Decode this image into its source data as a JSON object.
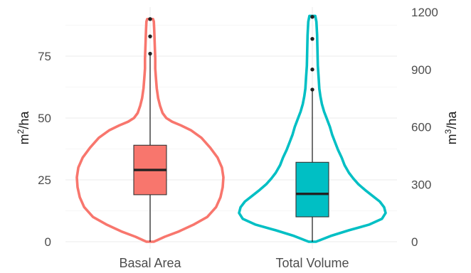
{
  "chart_data": {
    "type": "violin",
    "categories": [
      "Basal Area",
      "Total Volume"
    ],
    "y_left": {
      "label": "m²/ha",
      "ticks": [
        0,
        25,
        50,
        75
      ],
      "range": [
        0,
        93
      ]
    },
    "y_right": {
      "label": "m³/ha",
      "ticks": [
        0,
        300,
        600,
        900,
        1200
      ],
      "range": [
        0,
        1200
      ]
    },
    "grid": true,
    "series": [
      {
        "category": "Basal Area",
        "axis": "left",
        "color": "#F8766D",
        "box": {
          "q1": 19,
          "median": 29,
          "q3": 39,
          "whisker_low": 0,
          "whisker_high": 76
        },
        "outliers": [
          76,
          83,
          90
        ],
        "density": [
          [
            0,
            0.05
          ],
          [
            2,
            0.2
          ],
          [
            4,
            0.38
          ],
          [
            7,
            0.6
          ],
          [
            10,
            0.78
          ],
          [
            14,
            0.9
          ],
          [
            18,
            0.96
          ],
          [
            22,
            0.99
          ],
          [
            26,
            1.0
          ],
          [
            30,
            0.98
          ],
          [
            34,
            0.92
          ],
          [
            38,
            0.82
          ],
          [
            42,
            0.7
          ],
          [
            45,
            0.56
          ],
          [
            47,
            0.42
          ],
          [
            48.5,
            0.3
          ],
          [
            50,
            0.22
          ],
          [
            52,
            0.17
          ],
          [
            55,
            0.135
          ],
          [
            58,
            0.11
          ],
          [
            62,
            0.09
          ],
          [
            66,
            0.08
          ],
          [
            70,
            0.07
          ],
          [
            74,
            0.07
          ],
          [
            78,
            0.065
          ],
          [
            82,
            0.06
          ],
          [
            86,
            0.055
          ],
          [
            89,
            0.05
          ],
          [
            90,
            0.04
          ]
        ]
      },
      {
        "category": "Total Volume",
        "axis": "right",
        "color": "#00BFC4",
        "box": {
          "q1": 130,
          "median": 250,
          "q3": 415,
          "whisker_low": 0,
          "whisker_high": 795
        },
        "outliers": [
          795,
          900,
          1060,
          1175
        ],
        "density": [
          [
            0,
            0.05
          ],
          [
            30,
            0.25
          ],
          [
            60,
            0.5
          ],
          [
            90,
            0.78
          ],
          [
            120,
            0.95
          ],
          [
            150,
            1.0
          ],
          [
            180,
            0.98
          ],
          [
            210,
            0.92
          ],
          [
            240,
            0.82
          ],
          [
            270,
            0.72
          ],
          [
            300,
            0.63
          ],
          [
            330,
            0.56
          ],
          [
            360,
            0.5
          ],
          [
            400,
            0.44
          ],
          [
            440,
            0.4
          ],
          [
            480,
            0.35
          ],
          [
            520,
            0.31
          ],
          [
            560,
            0.27
          ],
          [
            600,
            0.24
          ],
          [
            640,
            0.2
          ],
          [
            680,
            0.16
          ],
          [
            720,
            0.13
          ],
          [
            760,
            0.11
          ],
          [
            800,
            0.095
          ],
          [
            860,
            0.085
          ],
          [
            920,
            0.075
          ],
          [
            1000,
            0.07
          ],
          [
            1080,
            0.065
          ],
          [
            1150,
            0.055
          ],
          [
            1180,
            0.04
          ]
        ]
      }
    ]
  }
}
